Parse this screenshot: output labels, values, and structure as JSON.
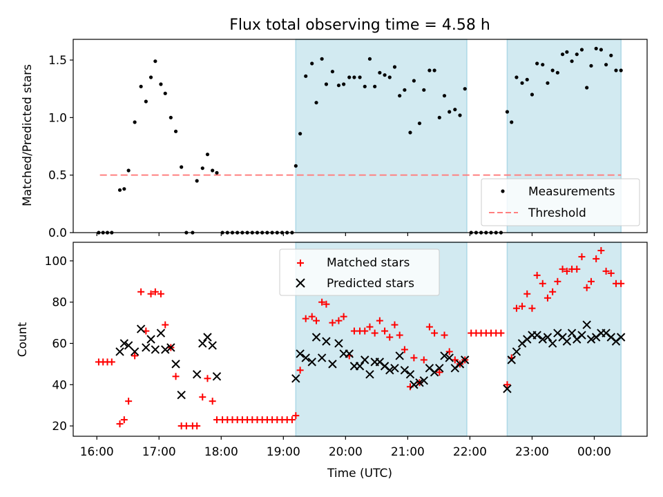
{
  "title": "Flux total observing time = 4.58 h",
  "chart_data": [
    {
      "type": "scatter",
      "ylabel": "Matched/Predicted stars",
      "xlabel": "",
      "ylim": [
        0,
        1.68
      ],
      "yticks": [
        0.0,
        0.5,
        1.0,
        1.5
      ],
      "ytick_labels": [
        "0.0",
        "0.5",
        "1.0",
        "1.5"
      ],
      "x_unit": "hours since 16:00 UTC",
      "xlim": [
        -0.38,
        8.85
      ],
      "shaded_intervals": [
        [
          3.2,
          5.95
        ],
        [
          6.6,
          8.43
        ]
      ],
      "threshold": {
        "y": 0.5,
        "x_start": 0.05,
        "x_end": 8.43
      },
      "series": [
        {
          "name": "Measurements",
          "x": [
            0.03,
            0.1,
            0.17,
            0.24,
            0.37,
            0.44,
            0.51,
            0.61,
            0.71,
            0.79,
            0.87,
            0.94,
            1.03,
            1.1,
            1.19,
            1.27,
            1.36,
            1.44,
            1.54,
            1.61,
            1.7,
            1.78,
            1.86,
            1.93,
            2.02,
            2.1,
            2.18,
            2.26,
            2.34,
            2.42,
            2.5,
            2.58,
            2.66,
            2.74,
            2.82,
            2.9,
            2.98,
            3.06,
            3.14,
            3.2,
            3.27,
            3.36,
            3.46,
            3.53,
            3.62,
            3.69,
            3.79,
            3.89,
            3.97,
            4.06,
            4.14,
            4.23,
            4.31,
            4.39,
            4.47,
            4.55,
            4.63,
            4.71,
            4.79,
            4.87,
            4.95,
            5.04,
            5.1,
            5.19,
            5.26,
            5.35,
            5.43,
            5.51,
            5.59,
            5.67,
            5.76,
            5.84,
            5.92,
            6.02,
            6.1,
            6.18,
            6.26,
            6.34,
            6.42,
            6.5,
            6.6,
            6.67,
            6.75,
            6.84,
            6.92,
            7.0,
            7.08,
            7.17,
            7.25,
            7.33,
            7.41,
            7.49,
            7.56,
            7.64,
            7.72,
            7.8,
            7.88,
            7.95,
            8.03,
            8.11,
            8.19,
            8.27,
            8.35,
            8.43
          ],
          "y": [
            0,
            0,
            0,
            0,
            0.37,
            0.38,
            0.54,
            0.96,
            1.27,
            1.14,
            1.35,
            1.49,
            1.29,
            1.21,
            1.0,
            0.88,
            0.57,
            0,
            0,
            0.45,
            0.56,
            0.68,
            0.54,
            0.52,
            0,
            0,
            0,
            0,
            0,
            0,
            0,
            0,
            0,
            0,
            0,
            0,
            0,
            0,
            0,
            0.58,
            0.86,
            1.36,
            1.47,
            1.13,
            1.51,
            1.29,
            1.4,
            1.28,
            1.29,
            1.35,
            1.35,
            1.35,
            1.27,
            1.51,
            1.27,
            1.39,
            1.37,
            1.35,
            1.44,
            1.19,
            1.24,
            0.87,
            1.32,
            0.95,
            1.24,
            1.41,
            1.41,
            1.0,
            1.19,
            1.05,
            1.07,
            1.02,
            1.25,
            0,
            0,
            0,
            0,
            0,
            0,
            0,
            1.05,
            0.96,
            1.35,
            1.3,
            1.33,
            1.2,
            1.47,
            1.46,
            1.3,
            1.41,
            1.39,
            1.55,
            1.57,
            1.49,
            1.55,
            1.59,
            1.26,
            1.45,
            1.6,
            1.59,
            1.46,
            1.54,
            1.41,
            1.41
          ]
        }
      ],
      "legend": {
        "position": "lower-right",
        "entries": [
          "Measurements",
          "Threshold"
        ]
      },
      "colors": {
        "shade": "#add8e6",
        "threshold": "#ff7f7f",
        "points": "#000000"
      }
    },
    {
      "type": "scatter",
      "ylabel": "Count",
      "xlabel": "Time (UTC)",
      "ylim": [
        15,
        109
      ],
      "yticks": [
        20,
        40,
        60,
        80,
        100
      ],
      "ytick_labels": [
        "20",
        "40",
        "60",
        "80",
        "100"
      ],
      "xticks": [
        0,
        1,
        2,
        3,
        4,
        5,
        6,
        7,
        8
      ],
      "xtick_labels": [
        "16:00",
        "17:00",
        "18:00",
        "19:00",
        "20:00",
        "21:00",
        "22:00",
        "23:00",
        "00:00"
      ],
      "x_unit": "hours since 16:00 UTC",
      "xlim": [
        -0.38,
        8.85
      ],
      "shaded_intervals": [
        [
          3.2,
          5.95
        ],
        [
          6.6,
          8.43
        ]
      ],
      "series": [
        {
          "name": "Matched stars",
          "x": [
            0.03,
            0.1,
            0.17,
            0.24,
            0.37,
            0.44,
            0.51,
            0.61,
            0.71,
            0.79,
            0.87,
            0.94,
            1.03,
            1.1,
            1.19,
            1.27,
            1.36,
            1.44,
            1.54,
            1.61,
            1.7,
            1.78,
            1.86,
            1.93,
            2.02,
            2.1,
            2.18,
            2.26,
            2.34,
            2.42,
            2.5,
            2.58,
            2.66,
            2.74,
            2.82,
            2.9,
            2.98,
            3.06,
            3.14,
            3.2,
            3.27,
            3.36,
            3.46,
            3.53,
            3.62,
            3.69,
            3.79,
            3.89,
            3.97,
            4.06,
            4.14,
            4.23,
            4.31,
            4.39,
            4.47,
            4.55,
            4.63,
            4.71,
            4.79,
            4.87,
            4.95,
            5.04,
            5.1,
            5.19,
            5.26,
            5.35,
            5.43,
            5.51,
            5.59,
            5.67,
            5.76,
            5.84,
            5.92,
            6.02,
            6.1,
            6.18,
            6.26,
            6.34,
            6.42,
            6.5,
            6.6,
            6.67,
            6.75,
            6.84,
            6.92,
            7.0,
            7.08,
            7.17,
            7.25,
            7.33,
            7.41,
            7.49,
            7.56,
            7.64,
            7.72,
            7.8,
            7.88,
            7.95,
            8.03,
            8.11,
            8.19,
            8.27,
            8.35,
            8.43
          ],
          "y": [
            51,
            51,
            51,
            51,
            21,
            23,
            32,
            54,
            85,
            66,
            84,
            85,
            84,
            69,
            58,
            44,
            20,
            20,
            20,
            20,
            34,
            43,
            32,
            23,
            23,
            23,
            23,
            23,
            23,
            23,
            23,
            23,
            23,
            23,
            23,
            23,
            23,
            23,
            23,
            25,
            47,
            72,
            73,
            71,
            80,
            79,
            70,
            71,
            73,
            54,
            66,
            66,
            66,
            68,
            65,
            71,
            66,
            63,
            69,
            64,
            57,
            39,
            53,
            41,
            52,
            68,
            65,
            46,
            64,
            56,
            52,
            50,
            52,
            65,
            65,
            65,
            65,
            65,
            65,
            65,
            40,
            53,
            77,
            78,
            84,
            77,
            93,
            89,
            82,
            85,
            90,
            96,
            95,
            96,
            96,
            102,
            87,
            90,
            101,
            105,
            95,
            94,
            89,
            89
          ]
        },
        {
          "name": "Predicted stars",
          "x": [
            0.37,
            0.44,
            0.51,
            0.61,
            0.71,
            0.79,
            0.87,
            0.94,
            1.03,
            1.1,
            1.19,
            1.27,
            1.36,
            1.61,
            1.7,
            1.78,
            1.86,
            1.93,
            3.2,
            3.27,
            3.36,
            3.46,
            3.53,
            3.62,
            3.69,
            3.79,
            3.89,
            3.97,
            4.06,
            4.14,
            4.23,
            4.31,
            4.39,
            4.47,
            4.55,
            4.63,
            4.71,
            4.79,
            4.87,
            4.95,
            5.04,
            5.1,
            5.19,
            5.26,
            5.35,
            5.43,
            5.51,
            5.59,
            5.67,
            5.76,
            5.84,
            5.92,
            6.6,
            6.67,
            6.75,
            6.84,
            6.92,
            7.0,
            7.08,
            7.17,
            7.25,
            7.33,
            7.41,
            7.49,
            7.56,
            7.64,
            7.72,
            7.8,
            7.88,
            7.95,
            8.03,
            8.11,
            8.19,
            8.27,
            8.35,
            8.43
          ],
          "y": [
            56,
            60,
            59,
            56,
            67,
            58,
            62,
            57,
            65,
            57,
            58,
            50,
            35,
            45,
            60,
            63,
            59,
            44,
            43,
            55,
            53,
            51,
            63,
            53,
            61,
            50,
            60,
            55,
            55,
            49,
            49,
            52,
            45,
            51,
            51,
            49,
            47,
            48,
            54,
            47,
            45,
            40,
            41,
            42,
            48,
            46,
            48,
            54,
            53,
            48,
            50,
            52,
            38,
            52,
            56,
            60,
            62,
            64,
            64,
            62,
            63,
            60,
            65,
            63,
            61,
            65,
            62,
            64,
            69,
            62,
            63,
            65,
            65,
            63,
            61,
            63
          ]
        }
      ],
      "legend": {
        "position": "top-center",
        "entries": [
          "Matched stars",
          "Predicted stars"
        ]
      },
      "colors": {
        "shade": "#add8e6",
        "matched": "#ff0000",
        "predicted": "#000000"
      }
    }
  ]
}
